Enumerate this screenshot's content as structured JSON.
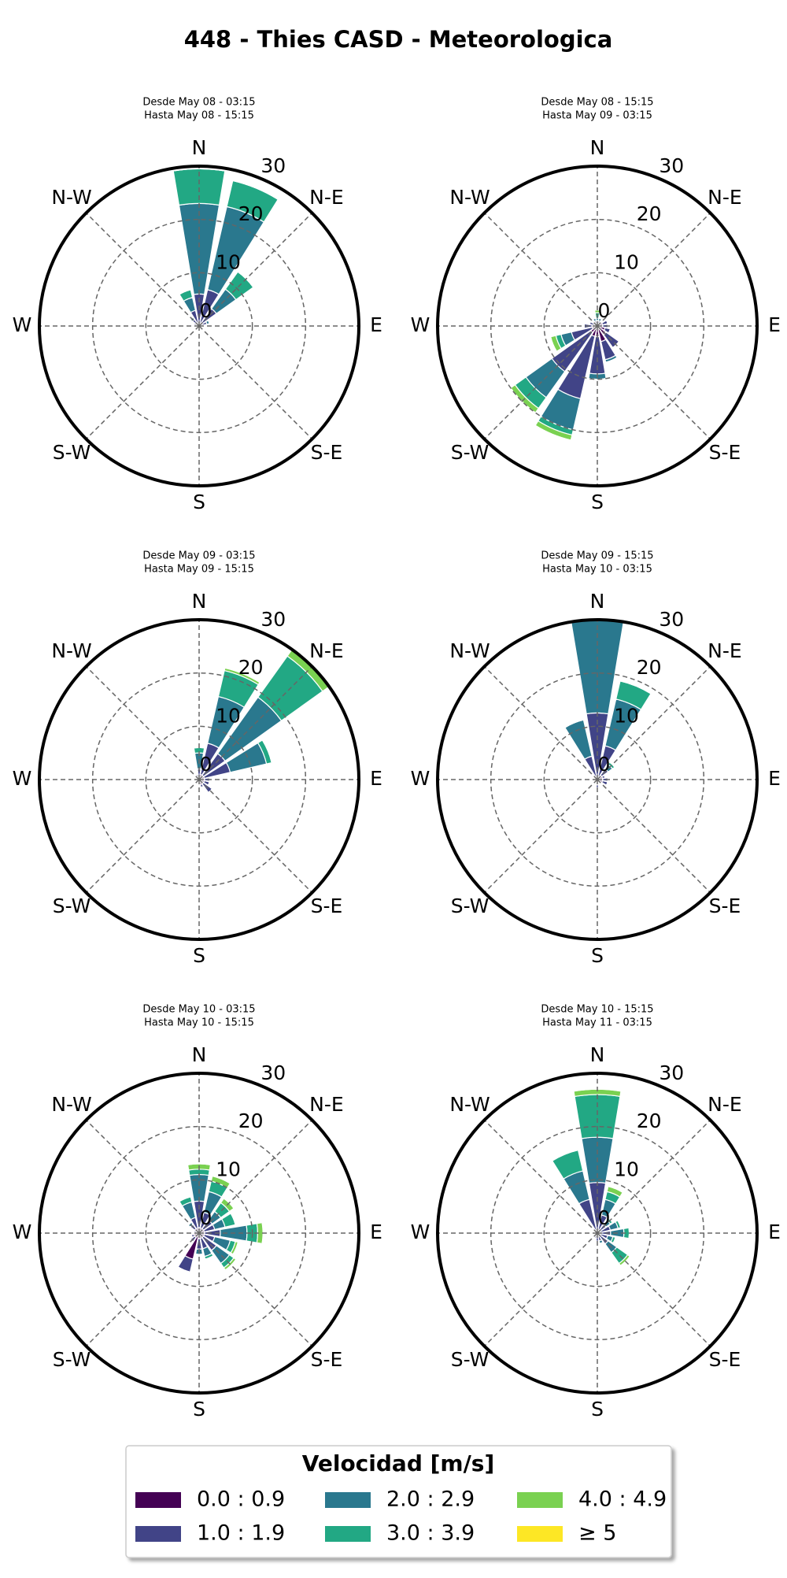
{
  "title": "448 - Thies CASD - Meteorologica",
  "legend": {
    "title": "Velocidad [m/s]",
    "entries": [
      {
        "name": "0.0 : 0.9",
        "color": "#440154"
      },
      {
        "name": "1.0 : 1.9",
        "color": "#414487"
      },
      {
        "name": "2.0 : 2.9",
        "color": "#2a788e"
      },
      {
        "name": "3.0 : 3.9",
        "color": "#22a884"
      },
      {
        "name": "4.0 : 4.9",
        "color": "#7ad151"
      },
      {
        "name": "≥ 5",
        "color": "#fde725"
      }
    ]
  },
  "chart_data": [
    {
      "type": "windrose",
      "subtitle": [
        "Desde May 08 - 03:15",
        "Hasta May 08 - 15:15"
      ],
      "directions": [
        "N",
        "N-E",
        "E",
        "S-E",
        "S",
        "S-W",
        "W",
        "N-W"
      ],
      "rlim": [
        0,
        30
      ],
      "rticks": [
        0,
        10,
        20,
        30
      ],
      "series": [
        {
          "values": [
            0.5,
            0.5,
            0.5,
            0.5,
            0.5,
            0.5,
            0.5,
            0.5,
            0.5,
            0.5,
            0.5,
            0.5,
            0.5,
            0.5,
            0.5,
            0.5
          ]
        },
        {
          "values": [
            5.5,
            6.5,
            3.5,
            1,
            0.5,
            0,
            0,
            0,
            0,
            0,
            0,
            0,
            0,
            0.5,
            1,
            2.5
          ]
        },
        {
          "values": [
            17,
            16,
            4.5,
            0.5,
            0,
            0,
            0,
            0,
            0,
            0,
            0,
            0,
            0,
            0,
            0.5,
            2.5
          ]
        },
        {
          "values": [
            6.5,
            5,
            4,
            0,
            0,
            0,
            0,
            0,
            0,
            0,
            0,
            0,
            0,
            0,
            0,
            1.5
          ]
        },
        {
          "values": [
            0,
            0,
            0,
            0,
            0,
            0,
            0,
            0,
            0,
            0,
            0,
            0,
            0,
            0,
            0,
            0
          ]
        },
        {
          "values": [
            0,
            0,
            0,
            0,
            0,
            0,
            0,
            0,
            0,
            0,
            0,
            0,
            0,
            0,
            0,
            0
          ]
        }
      ]
    },
    {
      "type": "windrose",
      "subtitle": [
        "Desde May 08 - 15:15",
        "Hasta May 09 - 03:15"
      ],
      "directions": [
        "N",
        "N-E",
        "E",
        "S-E",
        "S",
        "S-W",
        "W",
        "N-W"
      ],
      "rlim": [
        0,
        30
      ],
      "rticks": [
        0,
        10,
        20,
        30
      ],
      "series": [
        {
          "values": [
            0.5,
            0.5,
            0.5,
            1,
            1,
            1.5,
            2,
            3,
            2,
            2,
            1.5,
            1,
            1,
            0.5,
            0.5,
            0.5
          ]
        },
        {
          "values": [
            0.5,
            0.5,
            0.5,
            1,
            1,
            1,
            3,
            3.5,
            7,
            12,
            9,
            4,
            1.5,
            1,
            0.5,
            0.5
          ]
        },
        {
          "values": [
            0.5,
            0.5,
            0,
            0,
            0,
            0,
            0,
            0.5,
            1,
            6,
            6,
            2,
            0,
            0,
            0,
            0.5
          ]
        },
        {
          "values": [
            1,
            0,
            0,
            0,
            0,
            0,
            0,
            0,
            0,
            1,
            2.5,
            1,
            0,
            0,
            0,
            0
          ]
        },
        {
          "values": [
            0.5,
            0,
            0,
            0,
            0,
            0,
            0,
            0,
            0,
            1,
            1,
            1,
            0,
            0,
            0,
            0
          ]
        },
        {
          "values": [
            0,
            0,
            0,
            0,
            0,
            0,
            0,
            0,
            0,
            0,
            0,
            0,
            0,
            0,
            0,
            0
          ]
        }
      ]
    },
    {
      "type": "windrose",
      "subtitle": [
        "Desde May 09 - 03:15",
        "Hasta May 09 - 15:15"
      ],
      "directions": [
        "N",
        "N-E",
        "E",
        "S-E",
        "S",
        "S-W",
        "W",
        "N-W"
      ],
      "rlim": [
        0,
        30
      ],
      "rticks": [
        0,
        10,
        20,
        30
      ],
      "series": [
        {
          "values": [
            0.5,
            1,
            1,
            1,
            1,
            1,
            1,
            1,
            1,
            0.5,
            0.5,
            0.5,
            0.5,
            0.5,
            0.5,
            0.5
          ]
        },
        {
          "values": [
            1.5,
            6,
            5,
            5,
            1,
            1,
            2,
            0.5,
            0,
            0,
            0,
            0,
            0,
            0,
            0,
            0.5
          ]
        },
        {
          "values": [
            3,
            9,
            13,
            7,
            0,
            0,
            0,
            0,
            0,
            0,
            0,
            0,
            0,
            0,
            0,
            0
          ]
        },
        {
          "values": [
            1,
            5,
            9.5,
            1,
            0,
            0,
            0,
            0,
            0,
            0,
            0,
            0,
            0,
            0,
            0,
            0
          ]
        },
        {
          "values": [
            0,
            0.5,
            1.5,
            0,
            0,
            0,
            0,
            0,
            0,
            0,
            0,
            0,
            0,
            0,
            0,
            0
          ]
        },
        {
          "values": [
            0,
            0,
            0,
            0,
            0,
            0,
            0,
            0,
            0,
            0,
            0,
            0,
            0,
            0,
            0,
            0
          ]
        }
      ]
    },
    {
      "type": "windrose",
      "subtitle": [
        "Desde May 09 - 15:15",
        "Hasta May 10 - 03:15"
      ],
      "directions": [
        "N",
        "N-E",
        "E",
        "S-E",
        "S",
        "S-W",
        "W",
        "N-W"
      ],
      "rlim": [
        0,
        30
      ],
      "rticks": [
        0,
        10,
        20,
        30
      ],
      "series": [
        {
          "values": [
            0.5,
            0.5,
            1,
            1,
            1,
            1,
            0.5,
            0.5,
            1,
            0.5,
            0.5,
            0.5,
            0.5,
            0.5,
            0.5,
            0.5
          ]
        },
        {
          "values": [
            12,
            6,
            1.5,
            0.5,
            1,
            1,
            0,
            0,
            0.5,
            0,
            0,
            0,
            0,
            0,
            0.5,
            4
          ]
        },
        {
          "values": [
            17.5,
            9,
            1,
            0,
            0,
            0,
            0,
            0,
            0,
            0,
            0,
            0,
            0,
            0,
            0,
            7
          ]
        },
        {
          "values": [
            0,
            3.5,
            0.5,
            0,
            0,
            0,
            0,
            0,
            0,
            0,
            0,
            0,
            0,
            0,
            0,
            0
          ]
        },
        {
          "values": [
            0,
            0,
            0,
            0,
            0,
            0,
            0,
            0,
            0,
            0,
            0,
            0,
            0,
            0,
            0,
            0
          ]
        },
        {
          "values": [
            0,
            0,
            0,
            0,
            0,
            0,
            0,
            0,
            0,
            0,
            0,
            0,
            0,
            0,
            0,
            0
          ]
        }
      ]
    },
    {
      "type": "windrose",
      "subtitle": [
        "Desde May 10 - 03:15",
        "Hasta May 10 - 15:15"
      ],
      "directions": [
        "N",
        "N-E",
        "E",
        "S-E",
        "S",
        "S-W",
        "W",
        "N-W"
      ],
      "rlim": [
        0,
        30
      ],
      "rticks": [
        0,
        10,
        20,
        30
      ],
      "series": [
        {
          "values": [
            1,
            1,
            1,
            1,
            1,
            1,
            1,
            1,
            1,
            5,
            1,
            1,
            0.5,
            0.5,
            1,
            1
          ]
        },
        {
          "values": [
            5,
            3,
            2,
            2,
            3,
            2,
            3,
            2,
            2,
            2.5,
            1,
            0.5,
            0.5,
            0.5,
            1,
            2
          ]
        },
        {
          "values": [
            5,
            4,
            2,
            2,
            5,
            3,
            3,
            1.5,
            1,
            0,
            0,
            0,
            0,
            0,
            0.5,
            3
          ]
        },
        {
          "values": [
            1,
            2,
            2,
            2,
            2,
            1,
            1,
            0.5,
            0,
            0,
            0,
            0,
            0,
            0,
            0,
            1
          ]
        },
        {
          "values": [
            1,
            1,
            1,
            0,
            1,
            0.5,
            0.5,
            0,
            0,
            0,
            0,
            0,
            0,
            0,
            0,
            0
          ]
        },
        {
          "values": [
            0,
            0,
            0,
            0,
            0,
            0,
            0,
            0,
            0,
            0,
            0,
            0,
            0,
            0,
            0,
            0
          ]
        }
      ]
    },
    {
      "type": "windrose",
      "subtitle": [
        "Desde May 10 - 15:15",
        "Hasta May 11 - 03:15"
      ],
      "directions": [
        "N",
        "N-E",
        "E",
        "S-E",
        "S",
        "S-W",
        "W",
        "N-W"
      ],
      "rlim": [
        0,
        30
      ],
      "rticks": [
        0,
        10,
        20,
        30
      ],
      "series": [
        {
          "values": [
            0.5,
            0.5,
            0.5,
            0.5,
            0.5,
            0.5,
            0.5,
            0.5,
            0.5,
            0.5,
            0.5,
            0.5,
            0.5,
            0.5,
            0.5,
            0.5
          ]
        },
        {
          "values": [
            9,
            3,
            1.5,
            2,
            2,
            1.5,
            2,
            1,
            1,
            0.5,
            0.5,
            0,
            0,
            0,
            0.5,
            6
          ]
        },
        {
          "values": [
            8.5,
            3,
            1,
            1.5,
            2.5,
            1,
            2,
            0.5,
            0,
            0,
            0,
            0,
            0,
            0,
            0,
            5.5
          ]
        },
        {
          "values": [
            8,
            1.5,
            0.5,
            0.5,
            1,
            0.5,
            2.5,
            0,
            0,
            0,
            0,
            0,
            0,
            0,
            0,
            4
          ]
        },
        {
          "values": [
            1,
            1,
            0,
            0,
            0,
            0,
            0.5,
            0,
            0,
            0,
            0,
            0,
            0,
            0,
            0,
            0
          ]
        },
        {
          "values": [
            0,
            0,
            0,
            0,
            0,
            0,
            0,
            0,
            0,
            0,
            0,
            0,
            0,
            0,
            0,
            0
          ]
        }
      ]
    }
  ]
}
